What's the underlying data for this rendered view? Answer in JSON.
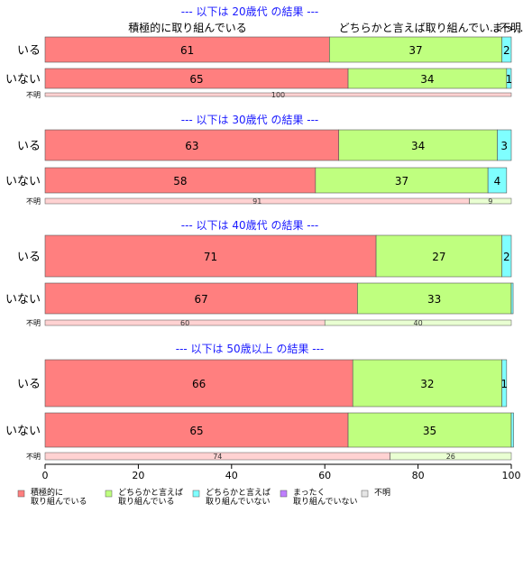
{
  "chart_data": {
    "type": "bar",
    "orientation": "horizontal",
    "stacked": true,
    "xlim": [
      0,
      100
    ],
    "x_ticks": [
      "0",
      "20",
      "40",
      "60",
      "80",
      "100"
    ],
    "header_labels": [
      "積極的に取り組んでいる",
      "どちらかと言えば取り組んでい...",
      "まっ...",
      "不明"
    ],
    "colors": [
      "#ff7f7f",
      "#bfff7f",
      "#7fffff",
      "#bf7fff",
      "#e6e6e6"
    ],
    "legend": [
      {
        "line1": "積極的に",
        "line2": "取り組んでいる"
      },
      {
        "line1": "どちらかと言えば",
        "line2": "取り組んでいる"
      },
      {
        "line1": "どちらかと言えば",
        "line2": "取り組んでいない"
      },
      {
        "line1": "まったく",
        "line2": "取り組んでいない"
      },
      {
        "line1": "不明",
        "line2": ""
      }
    ],
    "panels": [
      {
        "title": "--- 以下は 20歳代 の結果 ---",
        "rows": [
          {
            "label": "いる",
            "values": [
              61,
              37,
              2,
              0,
              0
            ],
            "labels": [
              "61",
              "37",
              "2",
              "",
              ""
            ]
          },
          {
            "label": "いない",
            "values": [
              65,
              34,
              1,
              0,
              0
            ],
            "labels": [
              "65",
              "34",
              "1",
              "",
              ""
            ]
          }
        ],
        "unknown": {
          "label": "不明",
          "values": [
            100,
            0
          ],
          "labels": [
            "100",
            ""
          ]
        }
      },
      {
        "title": "--- 以下は 30歳代 の結果 ---",
        "rows": [
          {
            "label": "いる",
            "values": [
              63,
              34,
              3,
              0,
              0
            ],
            "labels": [
              "63",
              "34",
              "3",
              "",
              ""
            ]
          },
          {
            "label": "いない",
            "values": [
              58,
              37,
              4,
              0,
              0
            ],
            "labels": [
              "58",
              "37",
              "4",
              "",
              ""
            ]
          }
        ],
        "unknown": {
          "label": "不明",
          "values": [
            91,
            9
          ],
          "labels": [
            "91",
            "9"
          ]
        }
      },
      {
        "title": "--- 以下は 40歳代 の結果 ---",
        "rows": [
          {
            "label": "いる",
            "values": [
              71,
              27,
              2,
              0,
              0
            ],
            "labels": [
              "71",
              "27",
              "2",
              "",
              ""
            ]
          },
          {
            "label": "いない",
            "values": [
              67,
              33,
              0.4,
              0,
              0
            ],
            "labels": [
              "67",
              "33",
              "",
              "",
              ""
            ]
          }
        ],
        "unknown": {
          "label": "不明",
          "values": [
            60,
            40
          ],
          "labels": [
            "60",
            "40"
          ]
        }
      },
      {
        "title": "--- 以下は 50歳以上 の結果 ---",
        "rows": [
          {
            "label": "いる",
            "values": [
              66,
              32,
              1,
              0,
              0
            ],
            "labels": [
              "66",
              "32",
              "1",
              "",
              ""
            ]
          },
          {
            "label": "いない",
            "values": [
              65,
              35,
              0.5,
              0,
              0
            ],
            "labels": [
              "65",
              "35",
              "",
              "",
              ""
            ]
          }
        ],
        "unknown": {
          "label": "不明",
          "values": [
            74,
            26
          ],
          "labels": [
            "74",
            "26"
          ]
        }
      }
    ]
  }
}
